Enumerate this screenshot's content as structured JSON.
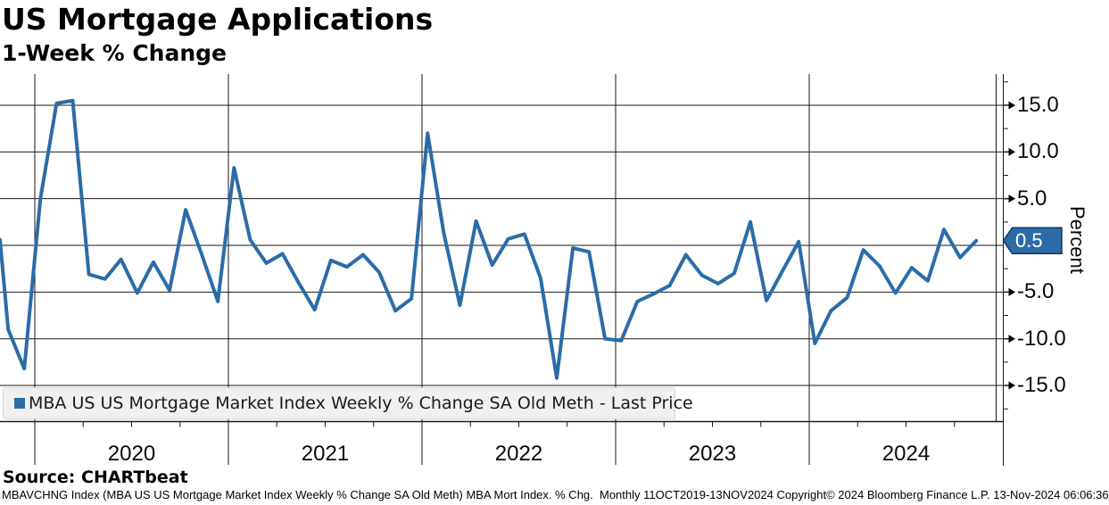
{
  "header": {
    "title": "US Mortgage Applications",
    "subtitle": "1-Week % Change"
  },
  "legend": {
    "label": "MBA US US Mortgage Market Index Weekly % Change SA Old Meth - Last Price",
    "marker_color": "#2b6ca8"
  },
  "footer": {
    "source": "Source: CHARTbeat",
    "disclaimer": "MBAVCHNG Index (MBA US US Mortgage Market Index Weekly % Change SA Old Meth) MBA Mort Index. % Chg.  Monthly 11OCT2019-13NOV2024 Copyright© 2024 Bloomberg Finance L.P. 13-Nov-2024 06:06:36"
  },
  "colors": {
    "line": "#2b6ca8",
    "badge_fill": "#2b6ca8",
    "badge_border": "#163a5f",
    "grid": "#1a1a1a"
  },
  "chart_data": {
    "type": "line",
    "title": "US Mortgage Applications",
    "subtitle": "1-Week % Change",
    "frequency": "Monthly",
    "date_range": "11OCT2019-13NOV2024",
    "grid": "on",
    "legend_position": "bottom-left",
    "y_axis": {
      "title": "Percent",
      "tick_values": [
        15,
        10,
        5,
        -5,
        -10,
        -15
      ],
      "tick_labels": [
        "15.0",
        "10.0",
        "5.0",
        "-5.0",
        "-10.0",
        "-15.0"
      ],
      "minor_tick_step": 2.5,
      "gridline_values": [
        15,
        10,
        5,
        0,
        -5,
        -10,
        -15
      ],
      "visible_range": [
        -18.8,
        18.3
      ]
    },
    "x_axis": {
      "year_labels": [
        "2020",
        "2021",
        "2022",
        "2023",
        "2024"
      ],
      "gridline_years": [
        2020,
        2021,
        2022,
        2023,
        2024
      ]
    },
    "last_price": {
      "value": 0.5,
      "label": "0.5"
    },
    "series": [
      {
        "name": "MBA US US Mortgage Market Index Weekly % Change SA Old Meth - Last Price",
        "color": "#2b6ca8",
        "dates": [
          "2019-10",
          "2019-11",
          "2019-12",
          "2020-01",
          "2020-02",
          "2020-03",
          "2020-04",
          "2020-05",
          "2020-06",
          "2020-07",
          "2020-08",
          "2020-09",
          "2020-10",
          "2020-11",
          "2020-12",
          "2021-01",
          "2021-02",
          "2021-03",
          "2021-04",
          "2021-05",
          "2021-06",
          "2021-07",
          "2021-08",
          "2021-09",
          "2021-10",
          "2021-11",
          "2021-12",
          "2022-01",
          "2022-02",
          "2022-03",
          "2022-04",
          "2022-05",
          "2022-06",
          "2022-07",
          "2022-08",
          "2022-09",
          "2022-10",
          "2022-11",
          "2022-12",
          "2023-01",
          "2023-02",
          "2023-03",
          "2023-04",
          "2023-05",
          "2023-06",
          "2023-07",
          "2023-08",
          "2023-09",
          "2023-10",
          "2023-11",
          "2023-12",
          "2024-01",
          "2024-02",
          "2024-03",
          "2024-04",
          "2024-05",
          "2024-06",
          "2024-07",
          "2024-08",
          "2024-09",
          "2024-10",
          "2024-11"
        ],
        "values": [
          0.6,
          -9.0,
          -13.2,
          5.0,
          15.2,
          15.5,
          -3.1,
          -3.6,
          -1.5,
          -5.1,
          -1.8,
          -4.8,
          3.8,
          -1.0,
          -6.0,
          8.3,
          0.6,
          -1.9,
          -0.9,
          -4.0,
          -6.9,
          -1.6,
          -2.3,
          -1.0,
          -2.9,
          -7.0,
          -5.7,
          12.0,
          1.3,
          -6.4,
          2.6,
          -2.1,
          0.7,
          1.2,
          -3.5,
          -14.2,
          -0.3,
          -0.7,
          -10.0,
          -10.2,
          -6.0,
          -5.2,
          -4.3,
          -1.0,
          -3.2,
          -4.1,
          -3.0,
          2.5,
          -5.9,
          -2.7,
          0.4,
          -10.5,
          -7.0,
          -5.6,
          -0.5,
          -2.2,
          -5.1,
          -2.4,
          -3.8,
          1.7,
          -1.3,
          0.5
        ]
      }
    ]
  }
}
